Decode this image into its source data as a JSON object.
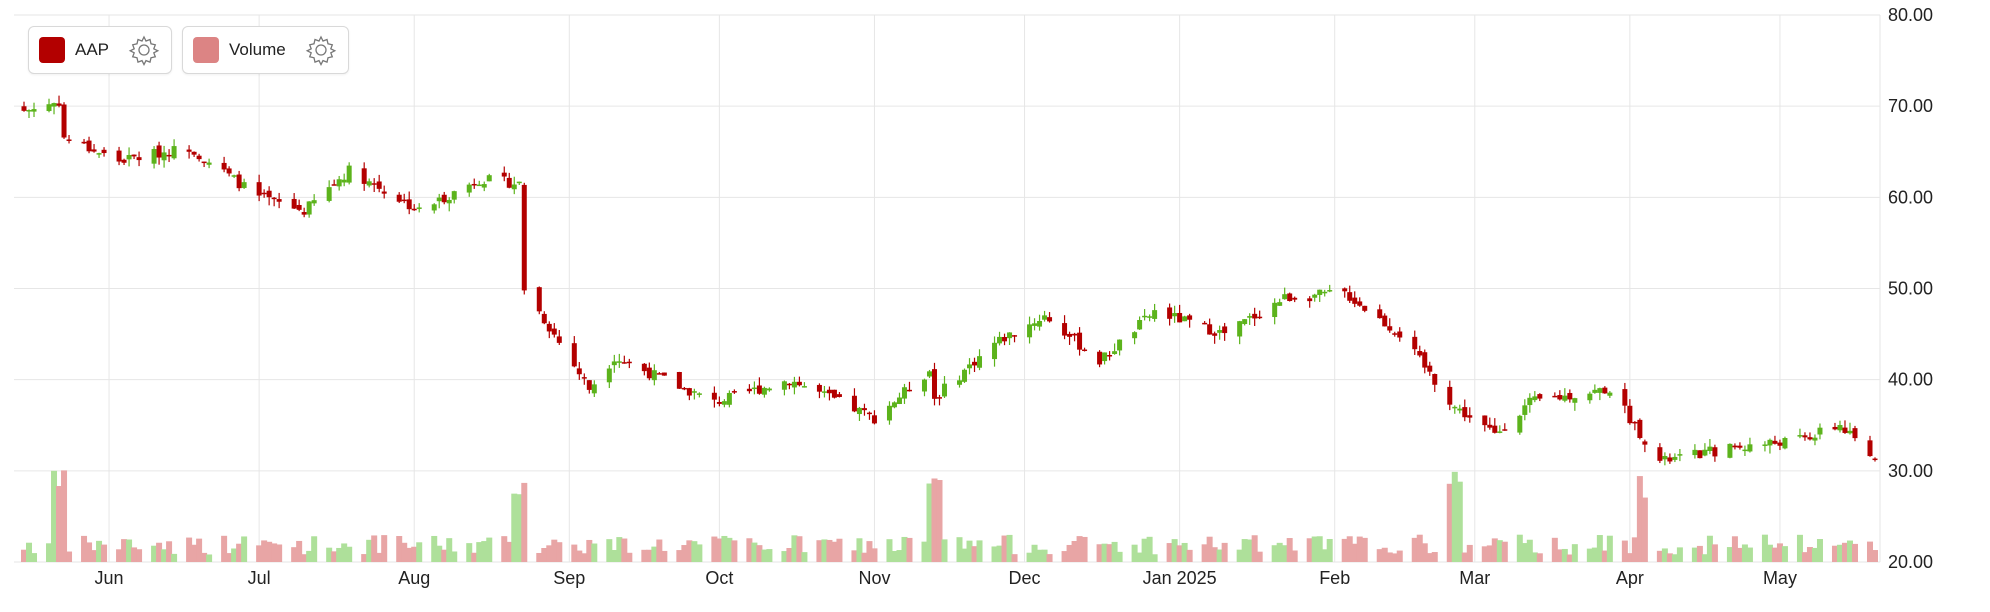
{
  "legend": {
    "items": [
      {
        "label": "AAP",
        "color": "#b30000",
        "icon": "gear-icon"
      },
      {
        "label": "Volume",
        "color": "#dc8484",
        "icon": "gear-icon"
      }
    ]
  },
  "chart_data": {
    "type": "candlestick",
    "title": "",
    "xlabel": "",
    "ylabel": "",
    "up_color": "#5cb31c",
    "down_color": "#b30000",
    "volume_up_color": "#aee09a",
    "volume_down_color": "#e8a5a5",
    "ylim": [
      20,
      80
    ],
    "grid": true,
    "legend_position": "top-left",
    "y_ticks": [
      "80.00",
      "70.00",
      "60.00",
      "50.00",
      "40.00",
      "30.00",
      "20.00"
    ],
    "y_tick_values": [
      80,
      70,
      60,
      50,
      40,
      30,
      20
    ],
    "x_ticks": [
      {
        "label": "Jun",
        "date": "2024-06-01"
      },
      {
        "label": "Jul",
        "date": "2024-07-01"
      },
      {
        "label": "Aug",
        "date": "2024-08-01"
      },
      {
        "label": "Sep",
        "date": "2024-09-01"
      },
      {
        "label": "Oct",
        "date": "2024-10-01"
      },
      {
        "label": "Nov",
        "date": "2024-11-01"
      },
      {
        "label": "Dec",
        "date": "2024-12-01"
      },
      {
        "label": "Jan 2025",
        "date": "2025-01-01"
      },
      {
        "label": "Feb",
        "date": "2025-02-01"
      },
      {
        "label": "Mar",
        "date": "2025-03-01"
      },
      {
        "label": "Apr",
        "date": "2025-04-01"
      },
      {
        "label": "May",
        "date": "2025-05-01"
      }
    ],
    "series": [
      {
        "name": "AAP",
        "type": "candlestick",
        "key_closes": [
          {
            "date": "2024-05-15",
            "close": 69.5
          },
          {
            "date": "2024-05-22",
            "close": 70.5
          },
          {
            "date": "2024-05-23",
            "close": 66.5
          },
          {
            "date": "2024-06-03",
            "close": 64.0
          },
          {
            "date": "2024-06-17",
            "close": 65.5
          },
          {
            "date": "2024-07-01",
            "close": 60.0
          },
          {
            "date": "2024-07-10",
            "close": 58.5
          },
          {
            "date": "2024-07-19",
            "close": 63.0
          },
          {
            "date": "2024-08-02",
            "close": 58.5
          },
          {
            "date": "2024-08-14",
            "close": 62.0
          },
          {
            "date": "2024-08-22",
            "close": 61.5
          },
          {
            "date": "2024-08-23",
            "close": 50.0
          },
          {
            "date": "2024-09-05",
            "close": 39.0
          },
          {
            "date": "2024-09-10",
            "close": 42.5
          },
          {
            "date": "2024-09-30",
            "close": 37.5
          },
          {
            "date": "2024-10-15",
            "close": 40.0
          },
          {
            "date": "2024-11-01",
            "close": 35.8
          },
          {
            "date": "2024-11-12",
            "close": 41.0
          },
          {
            "date": "2024-11-13",
            "close": 38.0
          },
          {
            "date": "2024-11-25",
            "close": 44.0
          },
          {
            "date": "2024-12-05",
            "close": 47.0
          },
          {
            "date": "2024-12-16",
            "close": 42.0
          },
          {
            "date": "2024-12-27",
            "close": 47.5
          },
          {
            "date": "2025-01-10",
            "close": 45.0
          },
          {
            "date": "2025-01-22",
            "close": 49.0
          },
          {
            "date": "2025-02-03",
            "close": 49.5
          },
          {
            "date": "2025-02-14",
            "close": 45.0
          },
          {
            "date": "2025-02-25",
            "close": 37.0
          },
          {
            "date": "2025-03-05",
            "close": 34.0
          },
          {
            "date": "2025-03-12",
            "close": 37.5
          },
          {
            "date": "2025-03-28",
            "close": 39.0
          },
          {
            "date": "2025-04-07",
            "close": 31.0
          },
          {
            "date": "2025-04-21",
            "close": 32.5
          },
          {
            "date": "2025-05-06",
            "close": 33.5
          },
          {
            "date": "2025-05-13",
            "close": 35.0
          },
          {
            "date": "2025-05-19",
            "close": 31.5
          }
        ]
      },
      {
        "name": "Volume",
        "type": "bar"
      }
    ]
  }
}
